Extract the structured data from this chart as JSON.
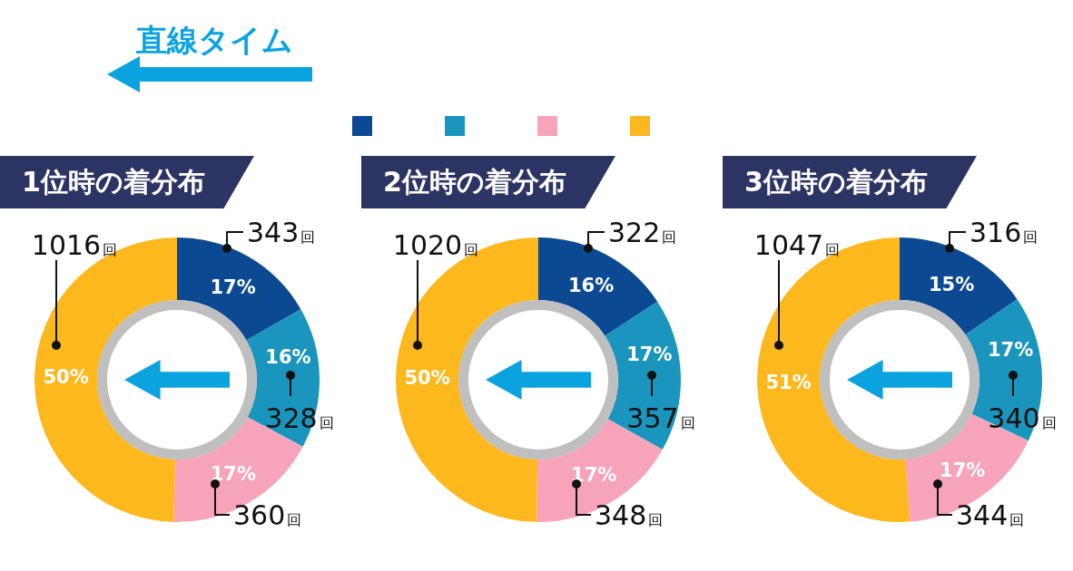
{
  "chart_data": [
    {
      "type": "other",
      "title": "直線タイム"
    },
    {
      "type": "donut",
      "title": "1位時の着分布",
      "categories": [
        null,
        null,
        null,
        null
      ],
      "values": [
        343,
        328,
        360,
        1016
      ],
      "colors": [
        "#0b4a93",
        "#1a95bd",
        "#f7a3b9",
        "#fdb81e"
      ],
      "value_labels": [
        "343回",
        "328回",
        "360回",
        "1016回"
      ],
      "annotations": [
        "17%",
        "16%",
        "17%",
        "50%"
      ]
    },
    {
      "type": "donut",
      "title": "2位時の着分布",
      "categories": [
        null,
        null,
        null,
        null
      ],
      "values": [
        322,
        357,
        348,
        1020
      ],
      "colors": [
        "#0b4a93",
        "#1a95bd",
        "#f7a3b9",
        "#fdb81e"
      ],
      "value_labels": [
        "322回",
        "357回",
        "348回",
        "1020回"
      ],
      "annotations": [
        "16%",
        "17%",
        "17%",
        "50%"
      ]
    },
    {
      "type": "donut",
      "title": "3位時の着分布",
      "categories": [
        null,
        null,
        null,
        null
      ],
      "values": [
        316,
        340,
        344,
        1047
      ],
      "colors": [
        "#0b4a93",
        "#1a95bd",
        "#f7a3b9",
        "#fdb81e"
      ],
      "value_labels": [
        "316回",
        "340回",
        "344回",
        "1047回"
      ],
      "annotations": [
        "15%",
        "17%",
        "17%",
        "51%"
      ]
    }
  ]
}
